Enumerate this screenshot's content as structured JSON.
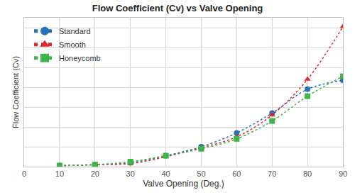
{
  "chart_data": {
    "type": "line",
    "title": "Flow Coefficient (Cv) vs Valve Opening",
    "x_label": "Valve Opening (Deg.)",
    "y_label": "Flow Coefficient (Cv)",
    "x": [
      10,
      20,
      30,
      40,
      50,
      60,
      70,
      80,
      90
    ],
    "series": [
      {
        "name": "Standard",
        "color": "#2472b9",
        "marker": "circle",
        "line_style": "dot",
        "values": [
          0.05,
          0.1,
          0.2,
          0.55,
          1.0,
          1.7,
          2.7,
          3.9,
          4.35
        ]
      },
      {
        "name": "Smooth",
        "color": "#e8242b",
        "marker": "triangle-up",
        "line_style": "dot",
        "values": [
          0.05,
          0.1,
          0.15,
          0.5,
          0.95,
          1.5,
          2.6,
          4.4,
          7.05
        ]
      },
      {
        "name": "Honeycomb",
        "color": "#3db54a",
        "marker": "square",
        "line_style": "dot",
        "values": [
          0.05,
          0.1,
          0.25,
          0.55,
          0.9,
          1.4,
          2.3,
          3.55,
          4.55
        ]
      }
    ],
    "xlim": [
      0,
      90
    ],
    "xticks": [
      0,
      10,
      20,
      30,
      40,
      50,
      60,
      70,
      80,
      90
    ],
    "ylim": [
      0,
      7.5
    ],
    "yticks": [
      0,
      1,
      2,
      3,
      4,
      5,
      6,
      7
    ],
    "grid": true,
    "legend": "top-left",
    "tick_labels": "x"
  }
}
